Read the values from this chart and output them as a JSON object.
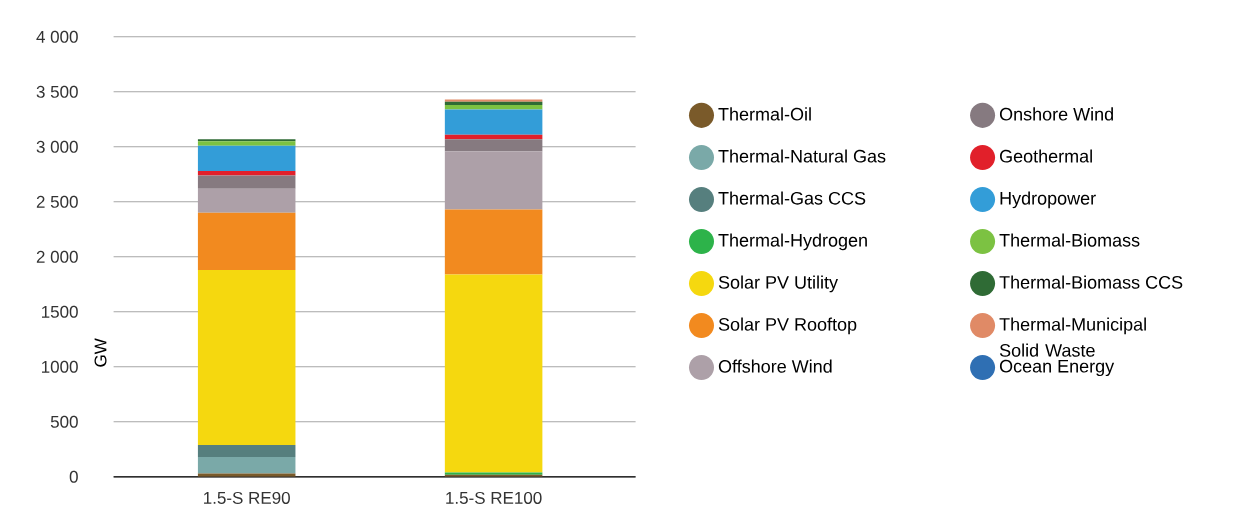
{
  "chart_data": {
    "type": "bar",
    "stacked": true,
    "ylabel": "GW",
    "categories": [
      "1.5-S RE90",
      "1.5-S RE100"
    ],
    "ylim": [
      0,
      4000
    ],
    "yticks": [
      0,
      500,
      1000,
      1500,
      {
        "value": 2000,
        "label": "2 000"
      },
      {
        "value": 2500,
        "label": "2 500"
      },
      {
        "value": 3000,
        "label": "3 000"
      },
      {
        "value": 3500,
        "label": "3 500"
      },
      {
        "value": 4000,
        "label": "4 000"
      }
    ],
    "grid": "y",
    "legend": "right",
    "series": [
      {
        "name": "Thermal-Oil",
        "color": "#7a5a2a",
        "values": [
          30,
          20
        ]
      },
      {
        "name": "Thermal-Natural Gas",
        "color": "#7aa9a8",
        "values": [
          150,
          0
        ]
      },
      {
        "name": "Thermal-Gas CCS",
        "color": "#567f7e",
        "values": [
          110,
          0
        ]
      },
      {
        "name": "Thermal-Hydrogen",
        "color": "#2db34a",
        "values": [
          0,
          20
        ]
      },
      {
        "name": "Solar PV Utility",
        "color": "#f5d80f",
        "values": [
          1590,
          1800
        ]
      },
      {
        "name": "Solar PV Rooftop",
        "color": "#f28a1f",
        "values": [
          520,
          590
        ]
      },
      {
        "name": "Offshore Wind",
        "color": "#ada0a8",
        "values": [
          220,
          530
        ]
      },
      {
        "name": "Onshore Wind",
        "color": "#867a80",
        "values": [
          120,
          110
        ]
      },
      {
        "name": "Geothermal",
        "color": "#e1202a",
        "values": [
          40,
          40
        ]
      },
      {
        "name": "Hydropower",
        "color": "#339dd8",
        "values": [
          230,
          230
        ]
      },
      {
        "name": "Thermal-Biomass",
        "color": "#7cc242",
        "values": [
          40,
          40
        ]
      },
      {
        "name": "Thermal-Biomass CCS",
        "color": "#2f6b35",
        "values": [
          20,
          30
        ]
      },
      {
        "name": "Thermal-Municipal Solid Waste",
        "color": "#e08a66",
        "values": [
          0,
          20
        ]
      },
      {
        "name": "Ocean Energy",
        "color": "#2f6fb3",
        "values": [
          0,
          0
        ]
      }
    ]
  }
}
